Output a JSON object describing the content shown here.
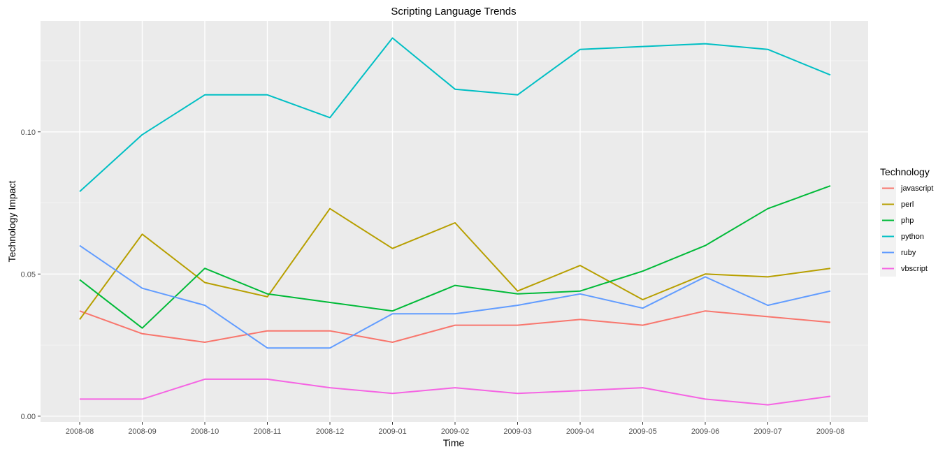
{
  "chart_data": {
    "type": "line",
    "title": "Scripting Language Trends",
    "xlabel": "Time",
    "ylabel": "Technology Impact",
    "categories": [
      "2008-08",
      "2008-09",
      "2008-10",
      "2008-11",
      "2008-12",
      "2009-01",
      "2009-02",
      "2009-03",
      "2009-04",
      "2009-05",
      "2009-06",
      "2009-07",
      "2009-08"
    ],
    "yticks": [
      0.0,
      0.05,
      0.1
    ],
    "ytick_labels": [
      "0.00",
      "0.05",
      "0.10"
    ],
    "ylim": [
      -0.002,
      0.139
    ],
    "grid": true,
    "legend": {
      "title": "Technology",
      "position": "right"
    },
    "series": [
      {
        "name": "javascript",
        "color": "#F8766D",
        "values": [
          0.037,
          0.029,
          0.026,
          0.03,
          0.03,
          0.026,
          0.032,
          0.032,
          0.034,
          0.032,
          0.037,
          0.035,
          0.033
        ]
      },
      {
        "name": "perl",
        "color": "#B79F00",
        "values": [
          0.034,
          0.064,
          0.047,
          0.042,
          0.073,
          0.059,
          0.068,
          0.044,
          0.053,
          0.041,
          0.05,
          0.049,
          0.052
        ]
      },
      {
        "name": "php",
        "color": "#00BA38",
        "values": [
          0.048,
          0.031,
          0.052,
          0.043,
          0.04,
          0.037,
          0.046,
          0.043,
          0.044,
          0.051,
          0.06,
          0.073,
          0.081
        ]
      },
      {
        "name": "python",
        "color": "#00BFC4",
        "values": [
          0.079,
          0.099,
          0.113,
          0.113,
          0.105,
          0.133,
          0.115,
          0.113,
          0.129,
          0.13,
          0.131,
          0.129,
          0.12
        ]
      },
      {
        "name": "ruby",
        "color": "#619CFF",
        "values": [
          0.06,
          0.045,
          0.039,
          0.024,
          0.024,
          0.036,
          0.036,
          0.039,
          0.043,
          0.038,
          0.049,
          0.039,
          0.044
        ]
      },
      {
        "name": "vbscript",
        "color": "#F564E3",
        "values": [
          0.006,
          0.006,
          0.013,
          0.013,
          0.01,
          0.008,
          0.01,
          0.008,
          0.009,
          0.01,
          0.006,
          0.004,
          0.007
        ]
      }
    ]
  }
}
